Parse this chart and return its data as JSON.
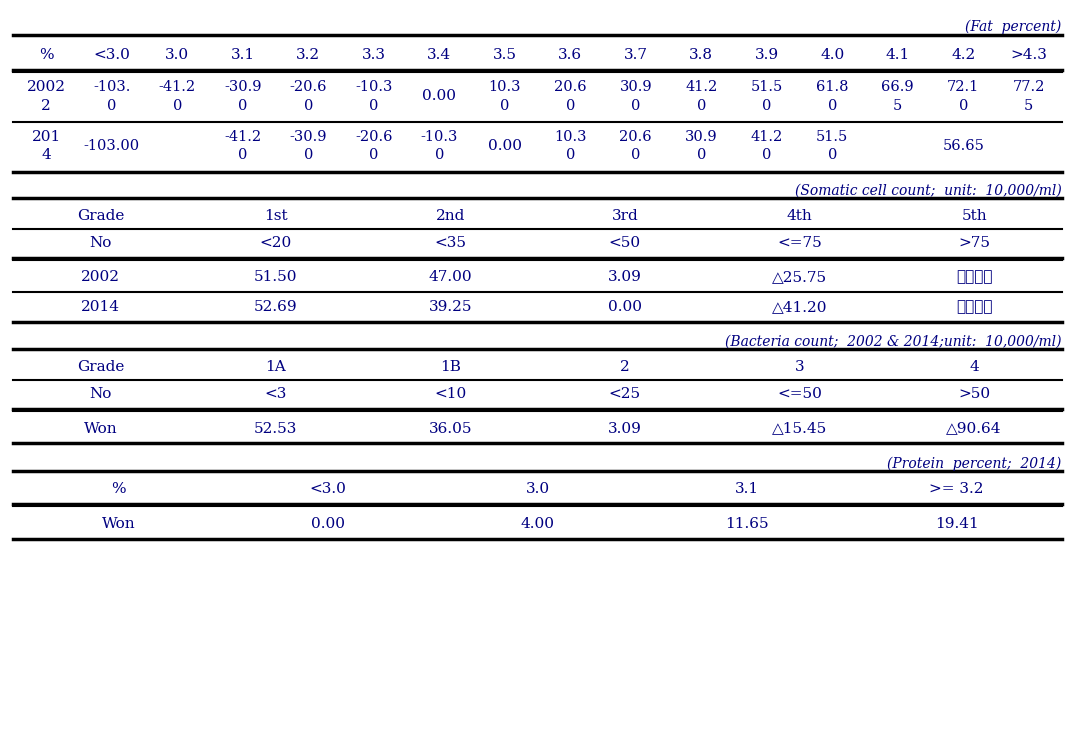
{
  "fat_caption": "(Fat  percent)",
  "fat_header": [
    "%",
    "<3.0",
    "3.0",
    "3.1",
    "3.2",
    "3.3",
    "3.4",
    "3.5",
    "3.6",
    "3.7",
    "3.8",
    "3.9",
    "4.0",
    "4.1",
    "4.2",
    ">4.3"
  ],
  "fat_2002_top": [
    "2002",
    "-103.",
    "-41.2",
    "-30.9",
    "-20.6",
    "-10.3",
    "",
    "10.3",
    "20.6",
    "30.9",
    "41.2",
    "51.5",
    "61.8",
    "66.9",
    "72.1",
    "77.2"
  ],
  "fat_2002_bot": [
    "2",
    "0",
    "0",
    "0",
    "0",
    "0",
    "0.00",
    "0",
    "0",
    "0",
    "0",
    "0",
    "0",
    "5",
    "0",
    "5"
  ],
  "fat_2014_top": [
    "201",
    "",
    "",
    "-41.2",
    "-30.9",
    "-20.6",
    "-10.3",
    "",
    "10.3",
    "20.6",
    "30.9",
    "41.2",
    "51.5",
    "",
    "",
    ""
  ],
  "fat_2014_bot": [
    "4",
    "-103.00",
    "",
    "0",
    "0",
    "0",
    "0",
    "0.00",
    "0",
    "0",
    "0",
    "0",
    "0",
    "",
    "56.65",
    ""
  ],
  "somatic_caption": "(Somatic cell count;  unit:  10,000/ml)",
  "somatic_header": [
    "Grade",
    "1st",
    "2nd",
    "3rd",
    "4th",
    "5th"
  ],
  "somatic_no": [
    "No",
    "<20",
    "<35",
    "<50",
    "<=75",
    ">75"
  ],
  "somatic_2002": [
    "2002",
    "51.50",
    "47.00",
    "3.09",
    "△25.75",
    "초과가격"
  ],
  "somatic_2014": [
    "2014",
    "52.69",
    "39.25",
    "0.00",
    "△41.20",
    "초과가격"
  ],
  "bacteria_caption": "(Bacteria count;  2002 & 2014;unit:  10,000/ml)",
  "bacteria_header": [
    "Grade",
    "1A",
    "1B",
    "2",
    "3",
    "4"
  ],
  "bacteria_no": [
    "No",
    "<3",
    "<10",
    "<25",
    "<=50",
    ">50"
  ],
  "bacteria_won": [
    "Won",
    "52.53",
    "36.05",
    "3.09",
    "△15.45",
    "△90.64"
  ],
  "protein_caption": "(Protein  percent;  2014)",
  "protein_header": [
    "%",
    "<3.0",
    "3.0",
    "3.1",
    ">= 3.2"
  ],
  "protein_won": [
    "Won",
    "0.00",
    "4.00",
    "11.65",
    "19.41"
  ],
  "text_color": "#000080",
  "bg_color": "#ffffff",
  "font_size": 11
}
